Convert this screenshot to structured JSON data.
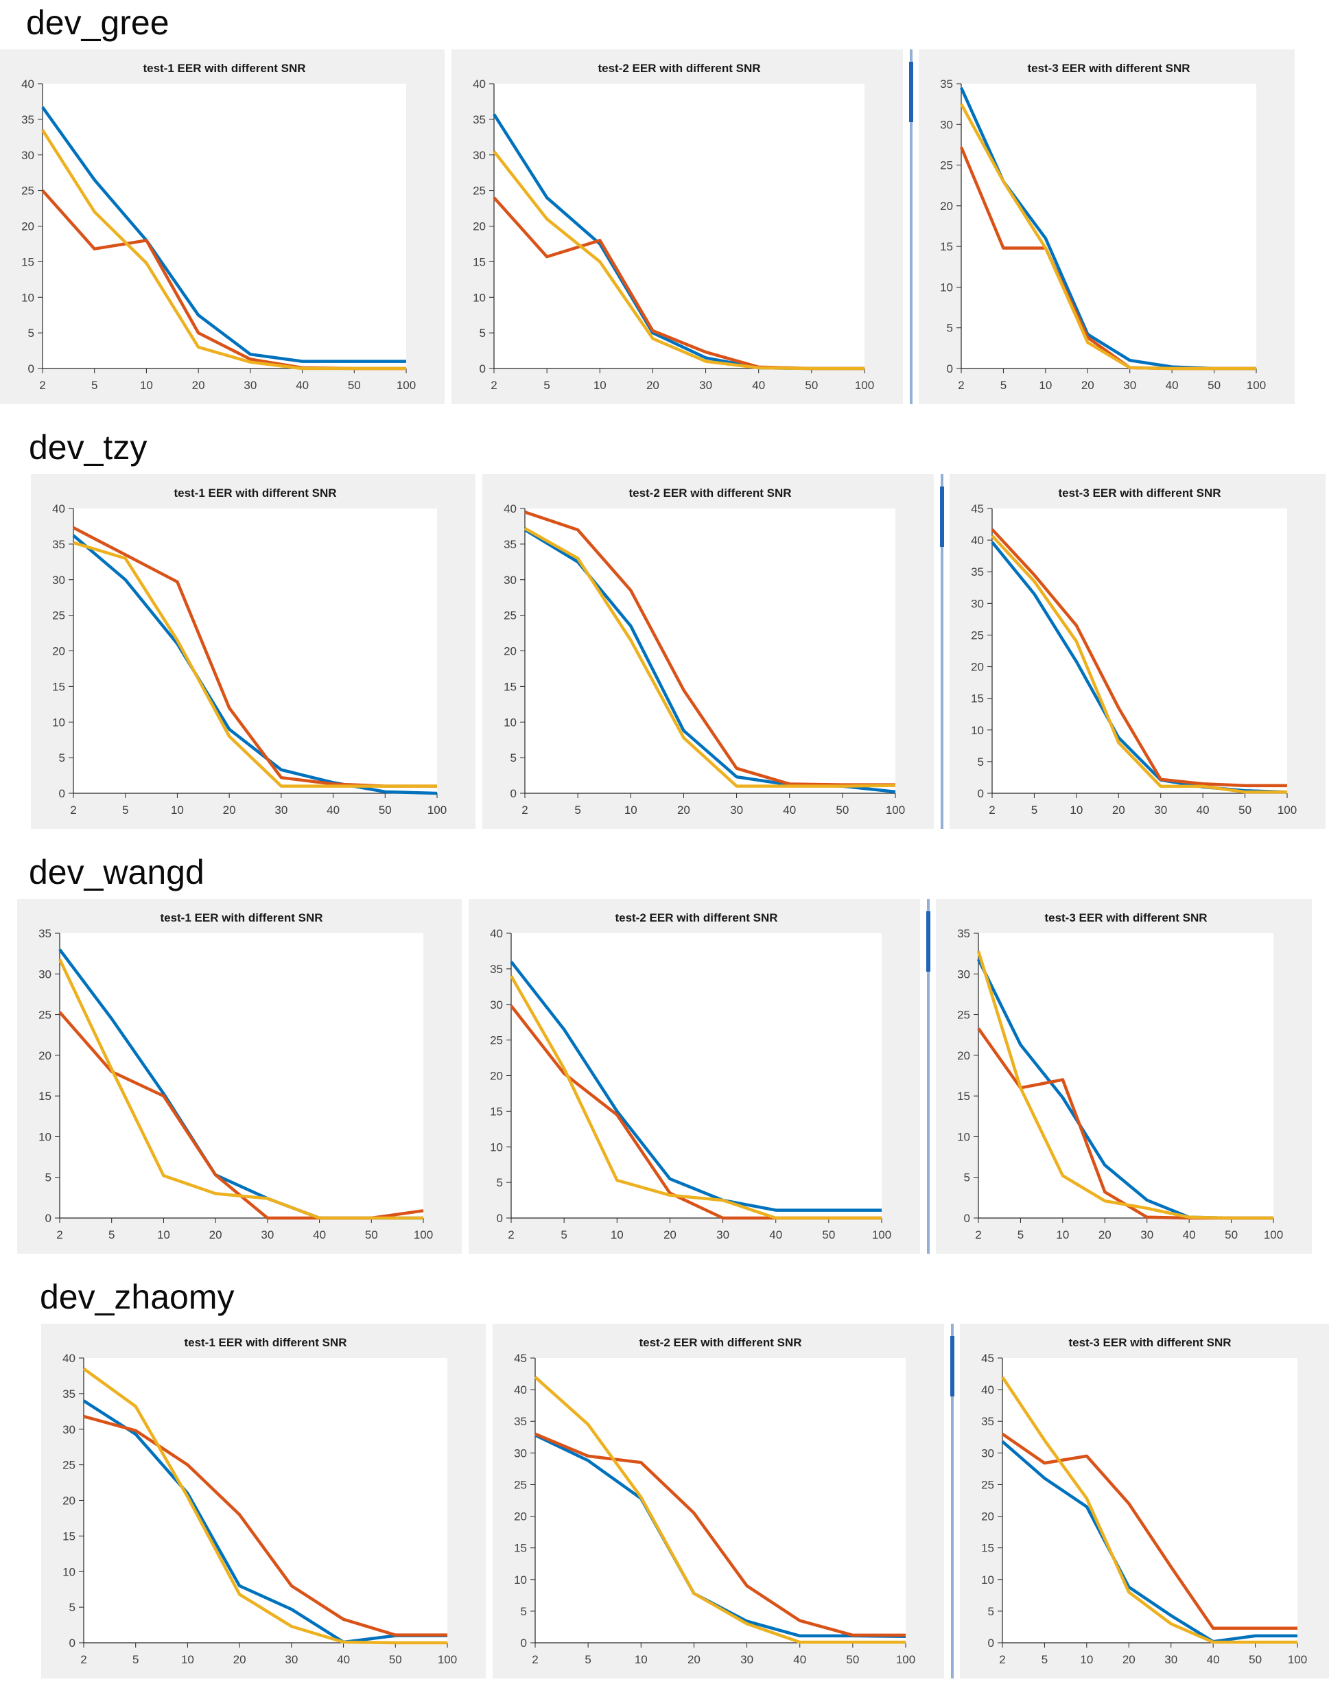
{
  "page": {
    "background": "#ffffff"
  },
  "colors": {
    "panel_bg": "#f0f0f0",
    "plot_bg": "#ffffff",
    "axis": "#262626",
    "tick_label": "#404040",
    "chart_title": "#1a1a1a",
    "section_title": "#0a0a0a",
    "separator_track": "#93b0d4",
    "separator_thumb": "#1f63b5",
    "series": [
      "#0072BD",
      "#D95319",
      "#EDB120"
    ]
  },
  "x_categories": [
    "2",
    "5",
    "10",
    "20",
    "30",
    "40",
    "50",
    "100"
  ],
  "sections": [
    {
      "title": "dev_gree",
      "chart_indices": [
        0,
        1,
        2
      ]
    },
    {
      "title": "dev_tzy",
      "chart_indices": [
        3,
        4,
        5
      ]
    },
    {
      "title": "dev_wangd",
      "chart_indices": [
        6,
        7,
        8
      ]
    },
    {
      "title": "dev_zhaomy",
      "chart_indices": [
        9,
        10,
        11
      ]
    }
  ],
  "chart_data": [
    {
      "type": "line",
      "section": "dev_gree",
      "title": "test-1 EER with different SNR",
      "xlabel": "",
      "ylabel": "",
      "ylim": [
        0,
        40
      ],
      "ytick_step": 5,
      "grid": false,
      "legend": "none",
      "x": [
        "2",
        "5",
        "10",
        "20",
        "30",
        "40",
        "50",
        "100"
      ],
      "series": [
        {
          "name": "line-blue",
          "values": [
            36.7,
            26.5,
            18.0,
            7.5,
            2.0,
            1.0,
            1.0,
            1.0
          ]
        },
        {
          "name": "line-orange",
          "values": [
            25.0,
            16.8,
            18.0,
            5.0,
            1.3,
            0.1,
            0.0,
            0.0
          ]
        },
        {
          "name": "line-yellow",
          "values": [
            33.5,
            22.0,
            14.8,
            3.0,
            0.9,
            0.0,
            0.0,
            0.0
          ]
        }
      ]
    },
    {
      "type": "line",
      "section": "dev_gree",
      "title": "test-2 EER with different SNR",
      "xlabel": "",
      "ylabel": "",
      "ylim": [
        0,
        40
      ],
      "ytick_step": 5,
      "grid": false,
      "legend": "none",
      "x": [
        "2",
        "5",
        "10",
        "20",
        "30",
        "40",
        "50",
        "100"
      ],
      "series": [
        {
          "name": "line-blue",
          "values": [
            35.7,
            24.0,
            17.5,
            5.0,
            1.5,
            0.1,
            0.0,
            0.0
          ]
        },
        {
          "name": "line-orange",
          "values": [
            24.0,
            15.7,
            18.0,
            5.3,
            2.3,
            0.2,
            0.0,
            0.0
          ]
        },
        {
          "name": "line-yellow",
          "values": [
            30.5,
            21.0,
            15.0,
            4.2,
            1.0,
            0.1,
            0.0,
            0.0
          ]
        }
      ]
    },
    {
      "type": "line",
      "section": "dev_gree",
      "title": "test-3 EER with different SNR",
      "xlabel": "",
      "ylabel": "",
      "ylim": [
        0,
        35
      ],
      "ytick_step": 5,
      "grid": false,
      "legend": "none",
      "x": [
        "2",
        "5",
        "10",
        "20",
        "30",
        "40",
        "50",
        "100"
      ],
      "series": [
        {
          "name": "line-blue",
          "values": [
            34.5,
            23.0,
            16.0,
            4.2,
            1.0,
            0.2,
            0.0,
            0.0
          ]
        },
        {
          "name": "line-orange",
          "values": [
            27.2,
            14.8,
            14.8,
            3.8,
            0.1,
            0.0,
            0.0,
            0.0
          ]
        },
        {
          "name": "line-yellow",
          "values": [
            32.5,
            23.0,
            14.8,
            3.2,
            0.1,
            0.0,
            0.0,
            0.0
          ]
        }
      ]
    },
    {
      "type": "line",
      "section": "dev_tzy",
      "title": "test-1 EER with different SNR",
      "xlabel": "",
      "ylabel": "",
      "ylim": [
        0,
        40
      ],
      "ytick_step": 5,
      "grid": false,
      "legend": "none",
      "x": [
        "2",
        "5",
        "10",
        "20",
        "30",
        "40",
        "50",
        "100"
      ],
      "series": [
        {
          "name": "line-blue",
          "values": [
            36.2,
            30.0,
            21.0,
            9.0,
            3.3,
            1.5,
            0.2,
            0.0
          ]
        },
        {
          "name": "line-orange",
          "values": [
            37.3,
            33.5,
            29.7,
            12.0,
            2.2,
            1.3,
            1.0,
            1.0
          ]
        },
        {
          "name": "line-yellow",
          "values": [
            35.2,
            33.0,
            21.5,
            8.0,
            1.0,
            1.0,
            1.0,
            1.0
          ]
        }
      ]
    },
    {
      "type": "line",
      "section": "dev_tzy",
      "title": "test-2 EER with different SNR",
      "xlabel": "",
      "ylabel": "",
      "ylim": [
        0,
        40
      ],
      "ytick_step": 5,
      "grid": false,
      "legend": "none",
      "x": [
        "2",
        "5",
        "10",
        "20",
        "30",
        "40",
        "50",
        "100"
      ],
      "series": [
        {
          "name": "line-blue",
          "values": [
            37.0,
            32.5,
            23.5,
            8.8,
            2.3,
            1.2,
            1.0,
            0.2
          ]
        },
        {
          "name": "line-orange",
          "values": [
            39.5,
            37.0,
            28.5,
            14.5,
            3.5,
            1.3,
            1.2,
            1.2
          ]
        },
        {
          "name": "line-yellow",
          "values": [
            37.2,
            33.0,
            21.5,
            7.8,
            1.0,
            1.0,
            1.0,
            1.1
          ]
        }
      ]
    },
    {
      "type": "line",
      "section": "dev_tzy",
      "title": "test-3 EER with different SNR",
      "xlabel": "",
      "ylabel": "",
      "ylim": [
        0,
        45
      ],
      "ytick_step": 5,
      "grid": false,
      "legend": "none",
      "x": [
        "2",
        "5",
        "10",
        "20",
        "30",
        "40",
        "50",
        "100"
      ],
      "series": [
        {
          "name": "line-blue",
          "values": [
            39.7,
            31.5,
            20.8,
            8.8,
            2.1,
            1.0,
            0.4,
            0.2
          ]
        },
        {
          "name": "line-orange",
          "values": [
            41.7,
            34.5,
            26.5,
            13.5,
            2.2,
            1.5,
            1.2,
            1.2
          ]
        },
        {
          "name": "line-yellow",
          "values": [
            40.7,
            33.5,
            24.0,
            8.0,
            1.1,
            1.1,
            0.2,
            0.2
          ]
        }
      ]
    },
    {
      "type": "line",
      "section": "dev_wangd",
      "title": "test-1 EER with different SNR",
      "xlabel": "",
      "ylabel": "",
      "ylim": [
        0,
        35
      ],
      "ytick_step": 5,
      "grid": false,
      "legend": "none",
      "x": [
        "2",
        "5",
        "10",
        "20",
        "30",
        "40",
        "50",
        "100"
      ],
      "series": [
        {
          "name": "line-blue",
          "values": [
            33.0,
            24.5,
            15.3,
            5.3,
            2.4,
            0.0,
            0.0,
            0.0
          ]
        },
        {
          "name": "line-orange",
          "values": [
            25.3,
            18.0,
            15.0,
            5.3,
            0.0,
            0.0,
            0.0,
            0.9
          ]
        },
        {
          "name": "line-yellow",
          "values": [
            31.8,
            18.3,
            5.2,
            3.0,
            2.4,
            0.0,
            0.0,
            0.0
          ]
        }
      ]
    },
    {
      "type": "line",
      "section": "dev_wangd",
      "title": "test-2 EER with different SNR",
      "xlabel": "",
      "ylabel": "",
      "ylim": [
        0,
        40
      ],
      "ytick_step": 5,
      "grid": false,
      "legend": "none",
      "x": [
        "2",
        "5",
        "10",
        "20",
        "30",
        "40",
        "50",
        "100"
      ],
      "series": [
        {
          "name": "line-blue",
          "values": [
            36.0,
            26.5,
            15.0,
            5.5,
            2.5,
            1.1,
            1.1,
            1.1
          ]
        },
        {
          "name": "line-orange",
          "values": [
            29.8,
            20.3,
            14.5,
            3.5,
            0.0,
            0.0,
            0.0,
            0.0
          ]
        },
        {
          "name": "line-yellow",
          "values": [
            34.0,
            21.0,
            5.3,
            3.2,
            2.5,
            0.0,
            0.0,
            0.0
          ]
        }
      ]
    },
    {
      "type": "line",
      "section": "dev_wangd",
      "title": "test-3 EER with different SNR",
      "xlabel": "",
      "ylabel": "",
      "ylim": [
        0,
        35
      ],
      "ytick_step": 5,
      "grid": false,
      "legend": "none",
      "x": [
        "2",
        "5",
        "10",
        "20",
        "30",
        "40",
        "50",
        "100"
      ],
      "series": [
        {
          "name": "line-blue",
          "values": [
            31.8,
            21.3,
            14.8,
            6.5,
            2.2,
            0.1,
            0.0,
            0.0
          ]
        },
        {
          "name": "line-orange",
          "values": [
            23.3,
            16.0,
            17.0,
            3.2,
            0.1,
            0.0,
            0.0,
            0.0
          ]
        },
        {
          "name": "line-yellow",
          "values": [
            32.8,
            16.0,
            5.2,
            2.1,
            1.2,
            0.1,
            0.0,
            0.0
          ]
        }
      ]
    },
    {
      "type": "line",
      "section": "dev_zhaomy",
      "title": "test-1 EER with different SNR",
      "xlabel": "",
      "ylabel": "",
      "ylim": [
        0,
        40
      ],
      "ytick_step": 5,
      "grid": false,
      "legend": "none",
      "x": [
        "2",
        "5",
        "10",
        "20",
        "30",
        "40",
        "50",
        "100"
      ],
      "series": [
        {
          "name": "line-blue",
          "values": [
            34.0,
            29.3,
            21.0,
            8.0,
            4.7,
            0.1,
            1.0,
            1.0
          ]
        },
        {
          "name": "line-orange",
          "values": [
            31.8,
            29.8,
            25.0,
            18.0,
            8.0,
            3.3,
            1.1,
            1.1
          ]
        },
        {
          "name": "line-yellow",
          "values": [
            38.5,
            33.2,
            20.5,
            6.8,
            2.3,
            0.1,
            0.0,
            0.0
          ]
        }
      ]
    },
    {
      "type": "line",
      "section": "dev_zhaomy",
      "title": "test-2 EER with different SNR",
      "xlabel": "",
      "ylabel": "",
      "ylim": [
        0,
        45
      ],
      "ytick_step": 5,
      "grid": false,
      "legend": "none",
      "x": [
        "2",
        "5",
        "10",
        "20",
        "30",
        "40",
        "50",
        "100"
      ],
      "series": [
        {
          "name": "line-blue",
          "values": [
            32.8,
            28.8,
            22.8,
            7.8,
            3.4,
            1.1,
            1.1,
            1.0
          ]
        },
        {
          "name": "line-orange",
          "values": [
            33.0,
            29.5,
            28.5,
            20.5,
            9.0,
            3.5,
            1.2,
            1.2
          ]
        },
        {
          "name": "line-yellow",
          "values": [
            42.0,
            34.5,
            23.0,
            7.8,
            3.0,
            0.1,
            0.1,
            0.1
          ]
        }
      ]
    },
    {
      "type": "line",
      "section": "dev_zhaomy",
      "title": "test-3 EER with different SNR",
      "xlabel": "",
      "ylabel": "",
      "ylim": [
        0,
        45
      ],
      "ytick_step": 5,
      "grid": false,
      "legend": "none",
      "x": [
        "2",
        "5",
        "10",
        "20",
        "30",
        "40",
        "50",
        "100"
      ],
      "series": [
        {
          "name": "line-blue",
          "values": [
            31.8,
            26.0,
            21.5,
            8.8,
            4.3,
            0.2,
            1.1,
            1.1
          ]
        },
        {
          "name": "line-orange",
          "values": [
            33.0,
            28.4,
            29.5,
            22.0,
            12.0,
            2.3,
            2.3,
            2.3
          ]
        },
        {
          "name": "line-yellow",
          "values": [
            42.0,
            32.0,
            22.8,
            8.0,
            3.0,
            0.1,
            0.1,
            0.1
          ]
        }
      ]
    }
  ]
}
